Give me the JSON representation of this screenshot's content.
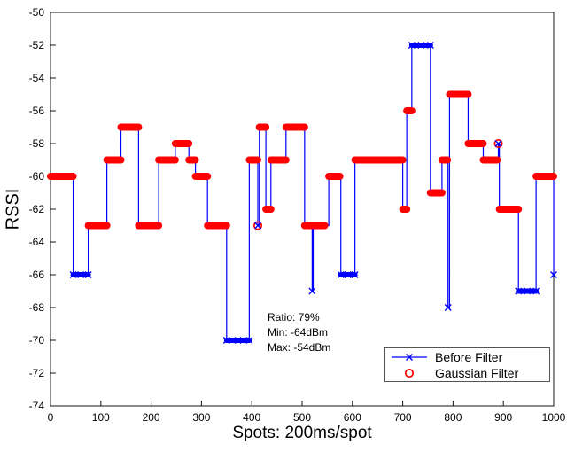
{
  "chart_data": {
    "type": "line",
    "title": "",
    "xlabel": "Spots: 200ms/spot",
    "ylabel": "RSSI",
    "xlim": [
      0,
      1000
    ],
    "ylim": [
      -74,
      -50
    ],
    "xticks": [
      0,
      100,
      200,
      300,
      400,
      500,
      600,
      700,
      800,
      900,
      1000
    ],
    "yticks": [
      -74,
      -72,
      -70,
      -68,
      -66,
      -64,
      -62,
      -60,
      -58,
      -56,
      -54,
      -52,
      -50
    ],
    "grid": false,
    "legend_position": "lower right",
    "annotation": [
      "Ratio: 79%",
      "Min: -64dBm",
      "Max: -54dBm"
    ],
    "series": [
      {
        "name": "Before Filter",
        "marker": "x",
        "color": "#0000ff",
        "style": "step-line"
      },
      {
        "name": "Gaussian Filter",
        "marker": "o",
        "color": "#ff0000",
        "style": "dense-circles"
      }
    ],
    "segments_note": "[x_start, x_end, rssi_dbm, type]; type g = gaussian-filtered plateau (red circles), b = before-filter only plateau (blue x)",
    "segments": [
      [
        0,
        45,
        -60,
        "g"
      ],
      [
        45,
        75,
        -66,
        "b"
      ],
      [
        75,
        112,
        -63,
        "g"
      ],
      [
        112,
        140,
        -59,
        "g"
      ],
      [
        140,
        175,
        -57,
        "g"
      ],
      [
        175,
        215,
        -63,
        "g"
      ],
      [
        215,
        248,
        -59,
        "g"
      ],
      [
        248,
        275,
        -58,
        "g"
      ],
      [
        275,
        288,
        -59,
        "g"
      ],
      [
        288,
        312,
        -60,
        "g"
      ],
      [
        312,
        350,
        -63,
        "g"
      ],
      [
        350,
        395,
        -70,
        "b"
      ],
      [
        395,
        412,
        -59,
        "g"
      ],
      [
        415,
        428,
        -57,
        "g"
      ],
      [
        428,
        438,
        -62,
        "g"
      ],
      [
        438,
        468,
        -59,
        "g"
      ],
      [
        468,
        505,
        -57,
        "g"
      ],
      [
        505,
        518,
        -63,
        "g"
      ],
      [
        522,
        545,
        -63,
        "g"
      ],
      [
        553,
        575,
        -60,
        "g"
      ],
      [
        577,
        605,
        -66,
        "b"
      ],
      [
        605,
        700,
        -59,
        "g"
      ],
      [
        700,
        708,
        -62,
        "g"
      ],
      [
        708,
        718,
        -56,
        "g"
      ],
      [
        718,
        755,
        -52,
        "b"
      ],
      [
        755,
        778,
        -61,
        "g"
      ],
      [
        778,
        789,
        -59,
        "g"
      ],
      [
        793,
        830,
        -55,
        "g"
      ],
      [
        830,
        860,
        -58,
        "g"
      ],
      [
        860,
        888,
        -59,
        "g"
      ],
      [
        892,
        930,
        -62,
        "g"
      ],
      [
        930,
        965,
        -67,
        "b"
      ],
      [
        965,
        1000,
        -60,
        "g"
      ]
    ],
    "points_note": "isolated single-spot values; m = marker(s) drawn: x = blue cross, o = red circle",
    "points": [
      {
        "x": 412,
        "y": -63,
        "m": "ox"
      },
      {
        "x": 520,
        "y": -67,
        "m": "x"
      },
      {
        "x": 790,
        "y": -68,
        "m": "x"
      },
      {
        "x": 890,
        "y": -58,
        "m": "ox"
      },
      {
        "x": 1000,
        "y": -66,
        "m": "x"
      }
    ]
  }
}
